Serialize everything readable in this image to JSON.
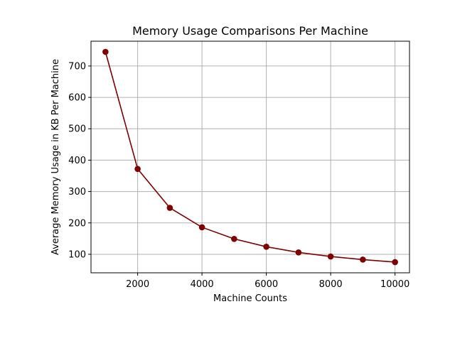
{
  "chart_data": {
    "type": "line",
    "title": "Memory Usage Comparisons Per Machine",
    "xlabel": "Machine Counts",
    "ylabel": "Average Memory Usage in KB Per Machine",
    "x": [
      1000,
      2000,
      3000,
      4000,
      5000,
      6000,
      7000,
      8000,
      9000,
      10000
    ],
    "series": [
      {
        "values": [
          745,
          372,
          248,
          186,
          149,
          124,
          106,
          93,
          83,
          75
        ]
      }
    ],
    "xlim": [
      550,
      10450
    ],
    "ylim": [
      41,
      779
    ],
    "xticks": [
      2000,
      4000,
      6000,
      8000,
      10000
    ],
    "yticks": [
      100,
      200,
      300,
      400,
      500,
      600,
      700
    ],
    "grid": true,
    "line_color": "#800000",
    "marker": "circle"
  }
}
